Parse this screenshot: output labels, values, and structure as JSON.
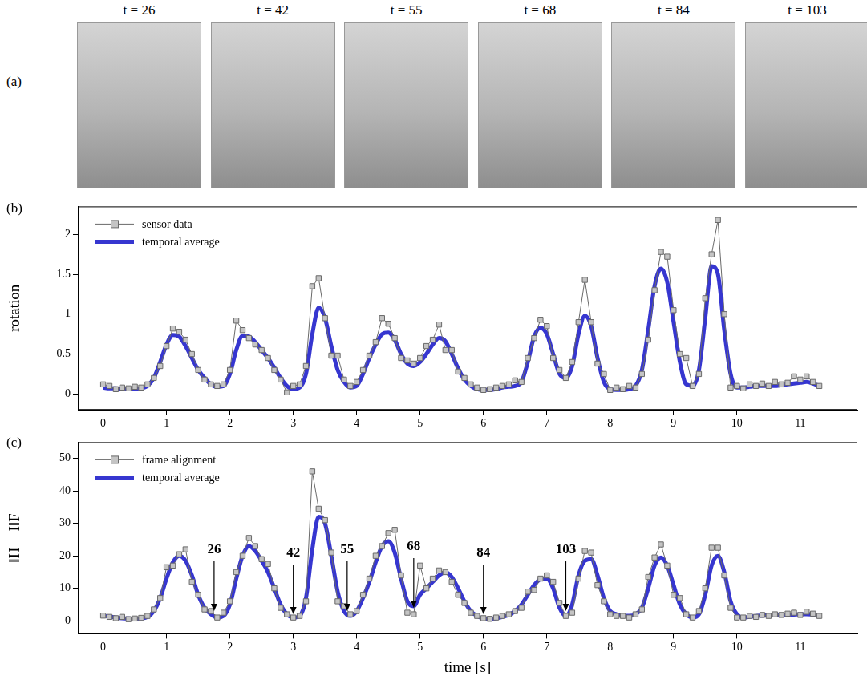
{
  "images": {
    "panel_label": "(a)",
    "titles": [
      "t = 26",
      "t = 42",
      "t = 55",
      "t = 68",
      "t = 84",
      "t = 103"
    ]
  },
  "chart_data": [
    {
      "type": "line",
      "panel_label": "(b)",
      "y_label": "rotation",
      "x": [
        0,
        0.1,
        0.2,
        0.3,
        0.4,
        0.5,
        0.6,
        0.7,
        0.8,
        0.9,
        1,
        1.1,
        1.2,
        1.3,
        1.4,
        1.5,
        1.6,
        1.7,
        1.8,
        1.9,
        2,
        2.1,
        2.2,
        2.3,
        2.4,
        2.5,
        2.6,
        2.7,
        2.8,
        2.9,
        3,
        3.1,
        3.2,
        3.3,
        3.4,
        3.5,
        3.6,
        3.7,
        3.8,
        3.9,
        4,
        4.1,
        4.2,
        4.3,
        4.4,
        4.5,
        4.6,
        4.7,
        4.8,
        4.9,
        5,
        5.1,
        5.2,
        5.3,
        5.4,
        5.5,
        5.6,
        5.7,
        5.8,
        5.9,
        6,
        6.1,
        6.2,
        6.3,
        6.4,
        6.5,
        6.6,
        6.7,
        6.8,
        6.9,
        7,
        7.1,
        7.2,
        7.3,
        7.4,
        7.5,
        7.6,
        7.7,
        7.8,
        7.9,
        8,
        8.1,
        8.2,
        8.3,
        8.4,
        8.5,
        8.6,
        8.7,
        8.8,
        8.9,
        9,
        9.1,
        9.2,
        9.3,
        9.4,
        9.5,
        9.6,
        9.7,
        9.8,
        9.9,
        10,
        10.1,
        10.2,
        10.3,
        10.4,
        10.5,
        10.6,
        10.7,
        10.8,
        10.9,
        11,
        11.1,
        11.2,
        11.3
      ],
      "series": [
        {
          "name": "sensor data",
          "color": "#808080",
          "marker": "square",
          "line_style": "solid",
          "values": [
            0.12,
            0.1,
            0.06,
            0.08,
            0.07,
            0.09,
            0.08,
            0.12,
            0.2,
            0.35,
            0.6,
            0.82,
            0.78,
            0.68,
            0.5,
            0.3,
            0.18,
            0.12,
            0.1,
            0.12,
            0.3,
            0.92,
            0.8,
            0.7,
            0.62,
            0.55,
            0.45,
            0.3,
            0.18,
            0.02,
            0.1,
            0.12,
            0.35,
            1.35,
            1.45,
            0.95,
            0.48,
            0.48,
            0.18,
            0.1,
            0.15,
            0.3,
            0.48,
            0.65,
            0.95,
            0.88,
            0.7,
            0.45,
            0.42,
            0.38,
            0.45,
            0.6,
            0.68,
            0.87,
            0.55,
            0.55,
            0.28,
            0.2,
            0.12,
            0.08,
            0.05,
            0.06,
            0.08,
            0.1,
            0.12,
            0.17,
            0.15,
            0.45,
            0.7,
            0.93,
            0.85,
            0.45,
            0.3,
            0.2,
            0.4,
            0.9,
            1.43,
            0.9,
            0.38,
            0.25,
            0.05,
            0.08,
            0.06,
            0.1,
            0.08,
            0.25,
            0.68,
            1.3,
            1.78,
            1.72,
            1.05,
            0.5,
            0.45,
            0.1,
            0.25,
            1.2,
            1.75,
            2.18,
            1.0,
            0.08,
            0.1,
            0.07,
            0.12,
            0.1,
            0.13,
            0.1,
            0.15,
            0.12,
            0.14,
            0.22,
            0.18,
            0.22,
            0.15,
            0.1
          ]
        },
        {
          "name": "temporal average",
          "color": "#3636d0",
          "line_style": "solid",
          "values": [
            0.08,
            0.07,
            0.07,
            0.06,
            0.06,
            0.06,
            0.07,
            0.1,
            0.2,
            0.4,
            0.62,
            0.74,
            0.72,
            0.6,
            0.45,
            0.3,
            0.2,
            0.12,
            0.09,
            0.1,
            0.25,
            0.55,
            0.73,
            0.72,
            0.65,
            0.55,
            0.45,
            0.33,
            0.2,
            0.1,
            0.06,
            0.08,
            0.25,
            0.75,
            1.08,
            0.95,
            0.6,
            0.3,
            0.15,
            0.08,
            0.1,
            0.25,
            0.45,
            0.62,
            0.75,
            0.77,
            0.68,
            0.5,
            0.38,
            0.35,
            0.4,
            0.5,
            0.62,
            0.7,
            0.66,
            0.5,
            0.32,
            0.18,
            0.1,
            0.06,
            0.05,
            0.05,
            0.06,
            0.08,
            0.09,
            0.1,
            0.15,
            0.4,
            0.72,
            0.83,
            0.75,
            0.5,
            0.25,
            0.2,
            0.35,
            0.75,
            0.98,
            0.85,
            0.45,
            0.15,
            0.06,
            0.05,
            0.05,
            0.06,
            0.1,
            0.3,
            0.8,
            1.35,
            1.57,
            1.4,
            0.9,
            0.4,
            0.12,
            0.1,
            0.3,
            0.95,
            1.6,
            1.5,
            0.8,
            0.25,
            0.08,
            0.08,
            0.09,
            0.1,
            0.1,
            0.1,
            0.1,
            0.11,
            0.12,
            0.13,
            0.14,
            0.15,
            0.13,
            0.1
          ]
        }
      ],
      "xlim": [
        -0.4,
        11.9
      ],
      "xticks": [
        0,
        1,
        2,
        3,
        4,
        5,
        6,
        7,
        8,
        9,
        10,
        11
      ],
      "ylim": [
        -0.2,
        2.35
      ],
      "yticks": [
        0,
        0.5,
        1,
        1.5,
        2
      ],
      "grid": false,
      "legend": "upper left"
    },
    {
      "type": "line",
      "panel_label": "(c)",
      "y_label": "‖H − I‖F",
      "x_label": "time [s]",
      "x": [
        0,
        0.1,
        0.2,
        0.3,
        0.4,
        0.5,
        0.6,
        0.7,
        0.8,
        0.9,
        1,
        1.1,
        1.2,
        1.3,
        1.4,
        1.5,
        1.6,
        1.7,
        1.8,
        1.9,
        2,
        2.1,
        2.2,
        2.3,
        2.4,
        2.5,
        2.6,
        2.7,
        2.8,
        2.9,
        3,
        3.1,
        3.2,
        3.3,
        3.4,
        3.5,
        3.6,
        3.7,
        3.8,
        3.9,
        4,
        4.1,
        4.2,
        4.3,
        4.4,
        4.5,
        4.6,
        4.7,
        4.8,
        4.9,
        5,
        5.1,
        5.2,
        5.3,
        5.4,
        5.5,
        5.6,
        5.7,
        5.8,
        5.9,
        6,
        6.1,
        6.2,
        6.3,
        6.4,
        6.5,
        6.6,
        6.7,
        6.8,
        6.9,
        7,
        7.1,
        7.2,
        7.3,
        7.4,
        7.5,
        7.6,
        7.7,
        7.8,
        7.9,
        8,
        8.1,
        8.2,
        8.3,
        8.4,
        8.5,
        8.6,
        8.7,
        8.8,
        8.9,
        9,
        9.1,
        9.2,
        9.3,
        9.4,
        9.5,
        9.6,
        9.7,
        9.8,
        9.9,
        10,
        10.1,
        10.2,
        10.3,
        10.4,
        10.5,
        10.6,
        10.7,
        10.8,
        10.9,
        11,
        11.1,
        11.2,
        11.3
      ],
      "series": [
        {
          "name": "frame alignment",
          "color": "#808080",
          "marker": "square",
          "line_style": "solid",
          "values": [
            1.6,
            1.2,
            0.8,
            1.2,
            0.5,
            0.7,
            0.9,
            1.5,
            3.5,
            7,
            16.5,
            17,
            20.5,
            22,
            12,
            8,
            3.5,
            3,
            1,
            2.5,
            6,
            15,
            20,
            25.5,
            23,
            19,
            17.5,
            10,
            4,
            2,
            1,
            1.5,
            6,
            46,
            34.5,
            31,
            21,
            6,
            4.5,
            2,
            3,
            8,
            13,
            20,
            23,
            27,
            28,
            14,
            2.5,
            2,
            17,
            10,
            13,
            15.5,
            15,
            12,
            8,
            5.5,
            2.5,
            1.5,
            0.8,
            0.6,
            1,
            1.5,
            2,
            3,
            4,
            9,
            9.5,
            13,
            14,
            12,
            5.5,
            1.5,
            2.5,
            13,
            21.5,
            21,
            11,
            6,
            2,
            1.5,
            1.5,
            1,
            2,
            3.5,
            13.5,
            19.5,
            23.5,
            17,
            8,
            7,
            2,
            1,
            3,
            10,
            22.5,
            22.5,
            14,
            4,
            1,
            1,
            1.5,
            1.2,
            1.8,
            1.5,
            2,
            1.8,
            2.2,
            2.5,
            1.8,
            2.8,
            2.2,
            1.5
          ]
        },
        {
          "name": "temporal average",
          "color": "#3636d0",
          "line_style": "solid",
          "values": [
            1.5,
            1.3,
            1,
            0.8,
            0.7,
            0.6,
            0.7,
            1.2,
            3,
            7,
            13,
            18,
            20,
            18.5,
            14,
            8,
            4,
            2,
            1,
            1.5,
            5,
            13,
            20,
            23,
            21.5,
            18.5,
            15,
            10,
            5,
            2,
            1,
            1.5,
            7,
            22,
            32,
            30,
            20,
            9,
            3,
            1.5,
            3,
            7,
            12,
            18,
            23,
            24.5,
            21,
            13,
            6,
            4.5,
            8,
            10,
            12,
            14,
            15,
            13.5,
            10,
            6,
            3,
            1.5,
            0.7,
            0.6,
            0.8,
            1.2,
            1.8,
            3,
            5,
            8,
            11,
            12.8,
            13,
            10,
            4,
            1.5,
            5,
            14,
            18.5,
            19,
            14,
            7,
            3,
            2,
            1.5,
            1.5,
            2,
            4,
            10,
            17,
            19.5,
            17,
            11,
            5,
            2,
            1,
            2,
            8,
            17,
            20,
            15,
            6,
            2,
            1,
            1.2,
            1.5,
            1.6,
            1.7,
            1.7,
            1.8,
            1.8,
            1.9,
            2,
            2,
            1.9,
            1.8
          ]
        }
      ],
      "annotations": [
        {
          "x": 1.75,
          "y": 3,
          "text": "26"
        },
        {
          "x": 3.0,
          "y": 2,
          "text": "42"
        },
        {
          "x": 3.85,
          "y": 3,
          "text": "55"
        },
        {
          "x": 4.9,
          "y": 4,
          "text": "68"
        },
        {
          "x": 6.0,
          "y": 2,
          "text": "84"
        },
        {
          "x": 7.3,
          "y": 3,
          "text": "103"
        }
      ],
      "xlim": [
        -0.4,
        11.9
      ],
      "xticks": [
        0,
        1,
        2,
        3,
        4,
        5,
        6,
        7,
        8,
        9,
        10,
        11
      ],
      "ylim": [
        -4,
        55
      ],
      "yticks": [
        0,
        10,
        20,
        30,
        40,
        50
      ],
      "grid": false,
      "legend": "upper left"
    }
  ]
}
